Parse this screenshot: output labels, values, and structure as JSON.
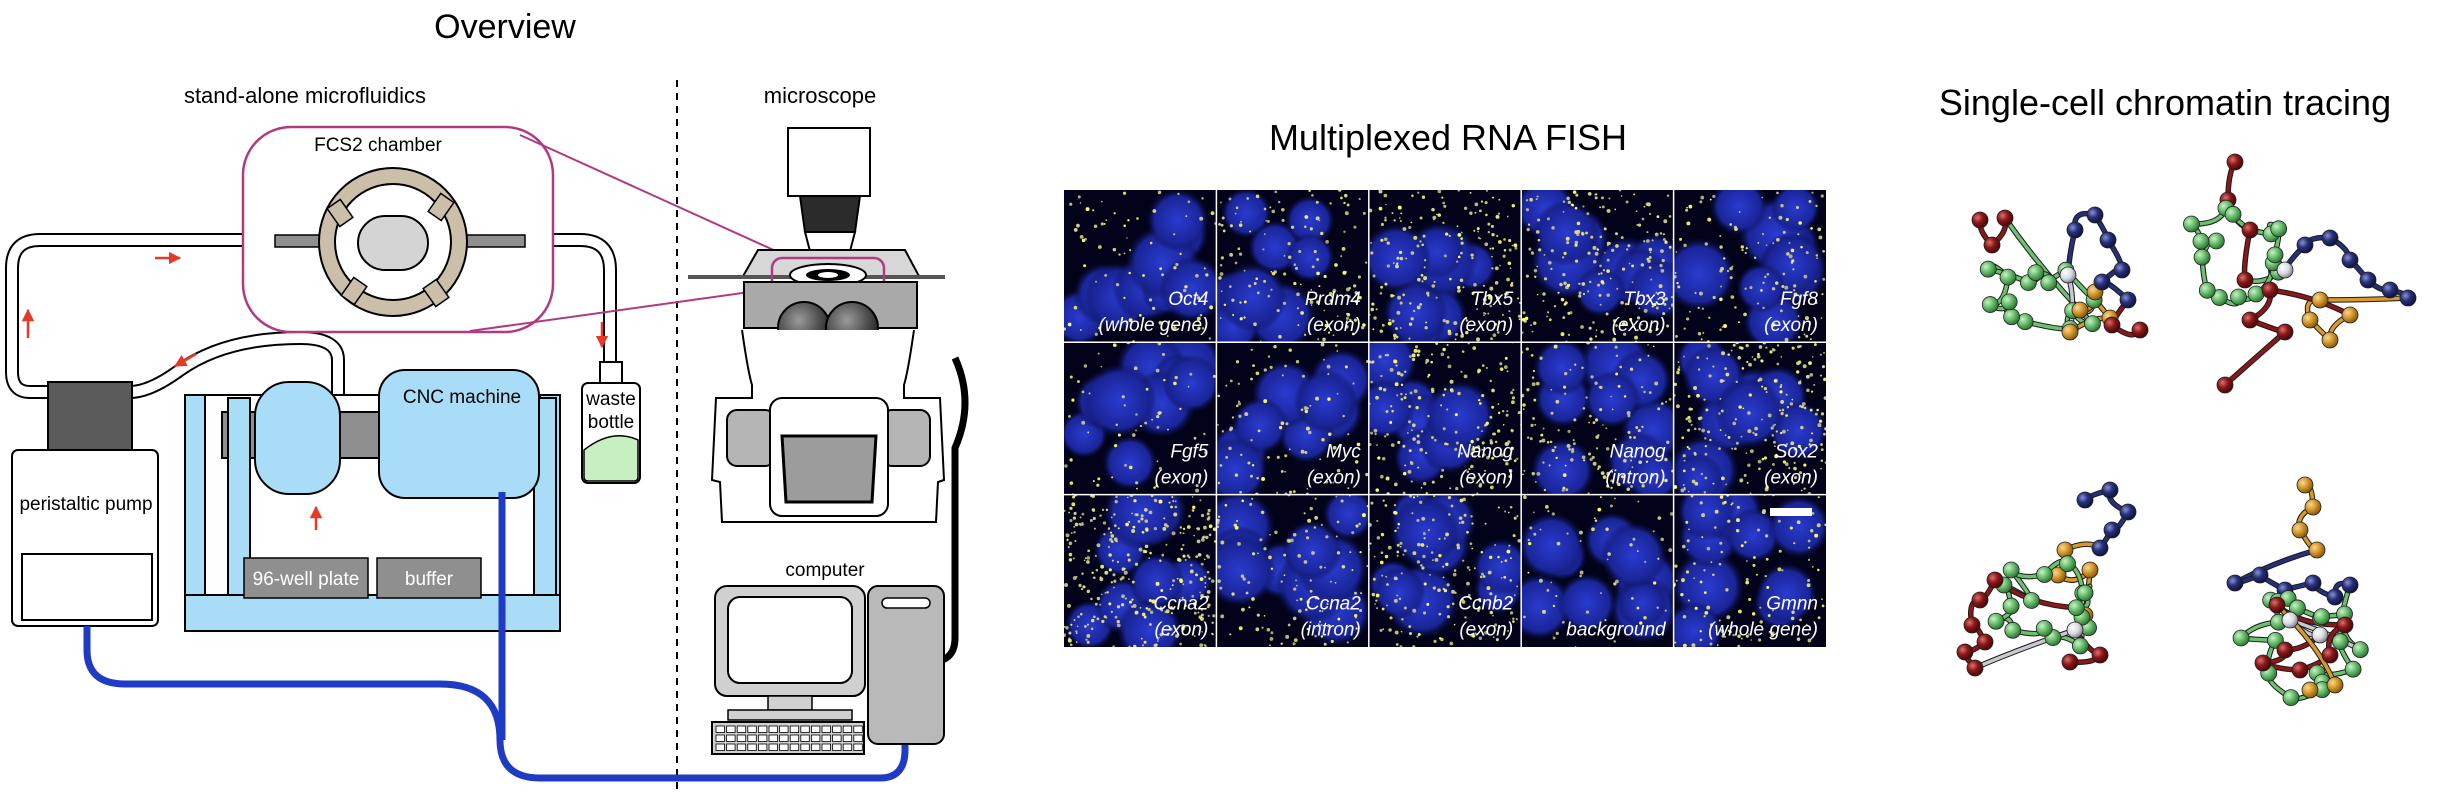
{
  "overview": {
    "title": "Overview",
    "left_heading": "stand-alone microfluidics",
    "right_heading": "microscope",
    "labels": {
      "fcs2": "FCS2 chamber",
      "cnc": "CNC machine",
      "waste_line1": "waste",
      "waste_line2": "bottle",
      "pump": "peristaltic pump",
      "plate": "96-well plate",
      "buffer": "buffer",
      "computer": "computer"
    }
  },
  "fish": {
    "title": "Multiplexed RNA FISH",
    "panels": [
      {
        "gene": "Oct4",
        "type": "(whole gene)",
        "signal": 0.15
      },
      {
        "gene": "Prdm4",
        "type": "(exon)",
        "signal": 0.35
      },
      {
        "gene": "Tbx5",
        "type": "(exon)",
        "signal": 0.55
      },
      {
        "gene": "Tbx3",
        "type": "(exon)",
        "signal": 0.6
      },
      {
        "gene": "Fgf8",
        "type": "(exon)",
        "signal": 0.3
      },
      {
        "gene": "Fgf5",
        "type": "(exon)",
        "signal": 0.1
      },
      {
        "gene": "Myc",
        "type": "(exon)",
        "signal": 0.2
      },
      {
        "gene": "Nanog",
        "type": "(exon)",
        "signal": 0.55
      },
      {
        "gene": "Nanog",
        "type": "(intron)",
        "signal": 0.35
      },
      {
        "gene": "Sox2",
        "type": "(exon)",
        "signal": 0.6
      },
      {
        "gene": "Ccna2",
        "type": "(exon)",
        "signal": 0.9
      },
      {
        "gene": "Ccna2",
        "type": "(intron)",
        "signal": 0.3
      },
      {
        "gene": "Ccnb2",
        "type": "(exon)",
        "signal": 0.5
      },
      {
        "gene": "",
        "type": "background",
        "signal": 0.1
      },
      {
        "gene": "Gmnn",
        "type": "(whole gene)",
        "signal": 0.3
      }
    ]
  },
  "tracing": {
    "title": "Single-cell chromatin tracing"
  },
  "colors": {
    "magenta": "#b03a82",
    "light_blue": "#a9dcf7",
    "gray": "#8f8f8f",
    "dark_gray": "#5a5a5a",
    "blue_cable": "#1f3bc4",
    "red_arrow": "#e53a2a",
    "chamber_tan": "#cbbfa9",
    "waste_green": "#c6f0c0",
    "bead_green": "#6cc070",
    "bead_red": "#8a1818",
    "bead_navy": "#26307a",
    "bead_orange": "#d89a2c"
  }
}
